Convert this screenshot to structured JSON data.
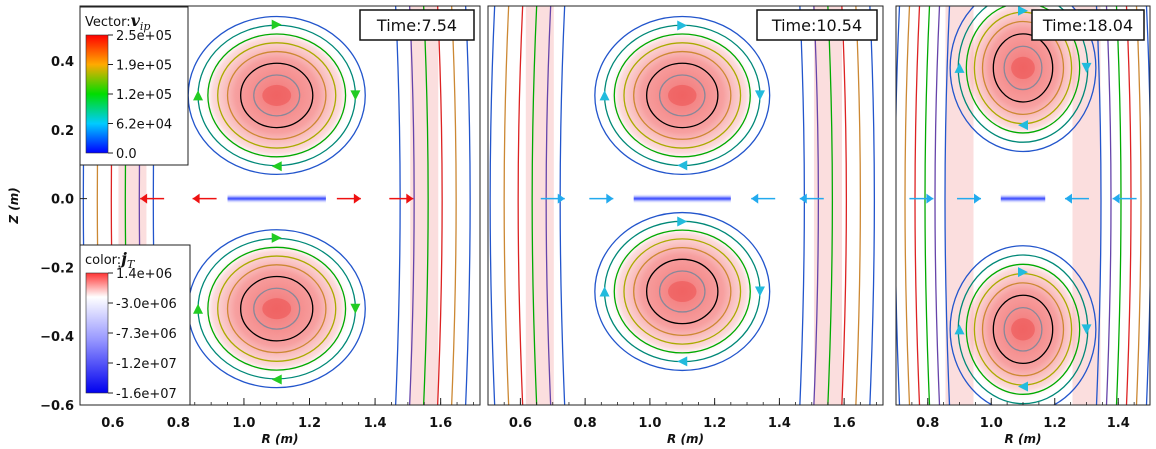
{
  "chart_data": [
    {
      "type": "heatmap",
      "time_label": "Time:7.54",
      "xlabel": "R (m)",
      "ylabel": "Z (m)",
      "xlim": [
        0.5,
        1.72
      ],
      "ylim": [
        -0.6,
        0.56
      ],
      "x_ticks": [
        "0.6",
        "0.8",
        "1.0",
        "1.2",
        "1.4",
        "1.6"
      ],
      "y_ticks": [
        "0.4",
        "0.2",
        "0.0",
        "−0.2",
        "−0.4",
        "−0.6"
      ],
      "o_points": [
        [
          1.1,
          0.3
        ],
        [
          1.1,
          -0.32
        ]
      ],
      "x_point": [
        1.1,
        0.0
      ]
    },
    {
      "type": "heatmap",
      "time_label": "Time:10.54",
      "xlabel": "R (m)",
      "xlim": [
        0.5,
        1.72
      ],
      "ylim": [
        -0.6,
        0.56
      ],
      "x_ticks": [
        "0.6",
        "0.8",
        "1.0",
        "1.2",
        "1.4",
        "1.6"
      ],
      "o_points": [
        [
          1.1,
          0.3
        ],
        [
          1.1,
          -0.27
        ]
      ],
      "x_point": [
        1.1,
        0.0
      ]
    },
    {
      "type": "heatmap",
      "time_label": "Time:18.04",
      "xlabel": "R (m)",
      "xlim": [
        0.7,
        1.5
      ],
      "ylim": [
        -0.6,
        0.56
      ],
      "x_ticks": [
        "0.8",
        "1.0",
        "1.2",
        "1.4"
      ],
      "o_points": [
        [
          1.1,
          0.38
        ],
        [
          1.1,
          -0.38
        ]
      ],
      "x_point": [
        1.1,
        0.0
      ]
    }
  ],
  "legend_vector": {
    "title_prefix": "Vector:",
    "symbol": "v",
    "subscript": "ip",
    "labels": [
      "2.5e+05",
      "1.9e+05",
      "1.2e+05",
      "6.2e+04",
      "0.0"
    ],
    "colors": [
      "#ff0000",
      "#ffaa00",
      "#00dd00",
      "#00ccff",
      "#0000ff"
    ]
  },
  "legend_color": {
    "title_prefix": "color:",
    "symbol": "j",
    "subscript": "T",
    "labels": [
      "1.4e+06",
      "-3.0e+06",
      "-7.3e+06",
      "-1.2e+07",
      "-1.6e+07"
    ],
    "colors": [
      "#ff4444",
      "#ffffff",
      "#9999ff",
      "#3333ff",
      "#0000ee"
    ]
  },
  "contour_colors": [
    "#000000",
    "#888899",
    "#cc8833",
    "#aaaa00",
    "#00aa00",
    "#008877",
    "#2255cc",
    "#6644aa",
    "#dd2222"
  ]
}
